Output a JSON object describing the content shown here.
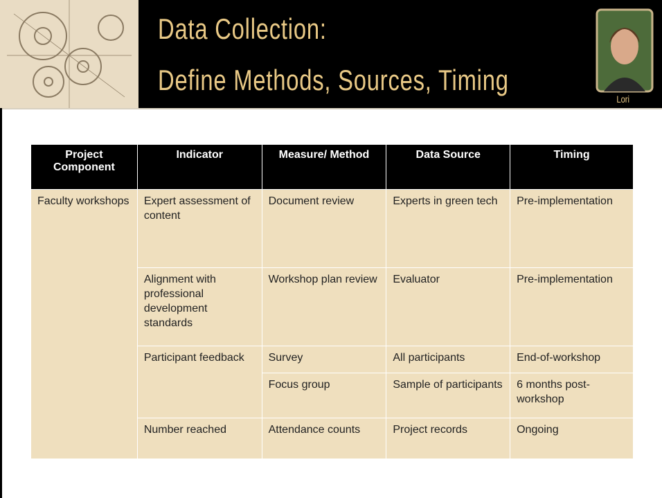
{
  "header": {
    "title_lines": [
      "Data Collection:",
      "Define Methods, Sources, Timing"
    ],
    "photo_caption": "Lori"
  },
  "table": {
    "columns": [
      "Project Component",
      "Indicator",
      "Measure/ Method",
      "Data Source",
      "Timing"
    ],
    "rows": [
      [
        "Faculty workshops",
        "Expert assessment of content",
        "Document review",
        "Experts in green tech",
        "Pre-implementation"
      ],
      [
        "Alignment with professional development standards",
        "Workshop plan review",
        "Evaluator",
        "Pre-implementation"
      ],
      [
        "Participant feedback",
        "Survey",
        "All participants",
        "End-of-workshop"
      ],
      [
        "Focus group",
        "Sample of participants",
        "6 months post-workshop"
      ],
      [
        "Number reached",
        "Attendance counts",
        "Project records",
        "Ongoing"
      ]
    ]
  }
}
